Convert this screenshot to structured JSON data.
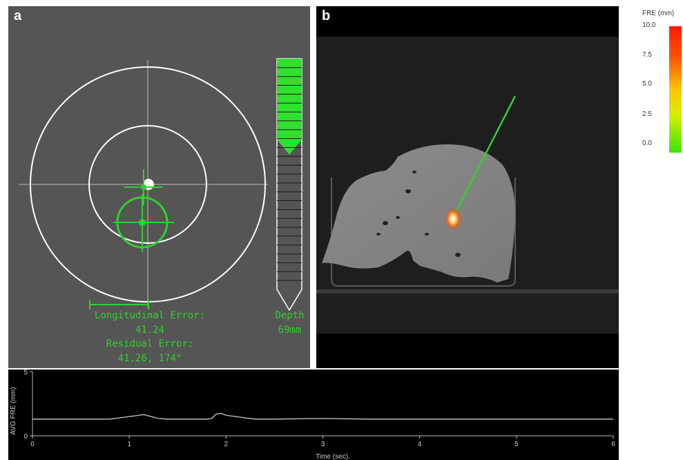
{
  "panel_a": {
    "label": "a",
    "longitudinal_error_label": "Longitudinal Error:",
    "longitudinal_error_value": "41.24",
    "residual_error_label": "Residual Error:",
    "residual_error_value": "41.26, 174°",
    "depth_label": "Depth",
    "depth_value": "69mm",
    "depth_fill_fraction": 0.35,
    "target_color": "#2fd12f"
  },
  "panel_b": {
    "label": "b"
  },
  "fre_legend": {
    "title": "FRE (mm)",
    "ticks": [
      "10.0",
      "7.5",
      "5.0",
      "2.5",
      "0.0"
    ],
    "range": [
      0,
      10
    ],
    "colors": {
      "high": "#ff1a00",
      "mid": "#ffc400",
      "low": "#39e600"
    }
  },
  "fre_plot": {
    "ylabel": "AVG FRE (mm)",
    "xlabel": "Time (sec).",
    "y_ticks": [
      "0",
      "5"
    ],
    "x_ticks": [
      "0",
      "1",
      "2",
      "3",
      "4",
      "5",
      "6"
    ]
  },
  "chart_data": {
    "type": "line",
    "title": "",
    "xlabel": "Time (sec).",
    "ylabel": "AVG FRE (mm)",
    "xlim": [
      0,
      6
    ],
    "ylim": [
      0,
      5
    ],
    "series": [
      {
        "x": [
          0,
          0.5,
          0.8,
          0.9,
          1.0,
          1.1,
          1.15,
          1.2,
          1.3,
          1.4,
          1.8,
          1.85,
          1.9,
          1.95,
          2.0,
          2.1,
          2.2,
          2.3,
          2.5,
          3.0,
          3.5,
          4.0,
          4.5,
          5.0,
          5.5,
          6.0
        ],
        "values": [
          1.3,
          1.3,
          1.3,
          1.4,
          1.5,
          1.6,
          1.65,
          1.55,
          1.35,
          1.3,
          1.3,
          1.35,
          1.7,
          1.75,
          1.6,
          1.5,
          1.4,
          1.3,
          1.3,
          1.35,
          1.3,
          1.3,
          1.3,
          1.3,
          1.3,
          1.3
        ]
      }
    ]
  }
}
